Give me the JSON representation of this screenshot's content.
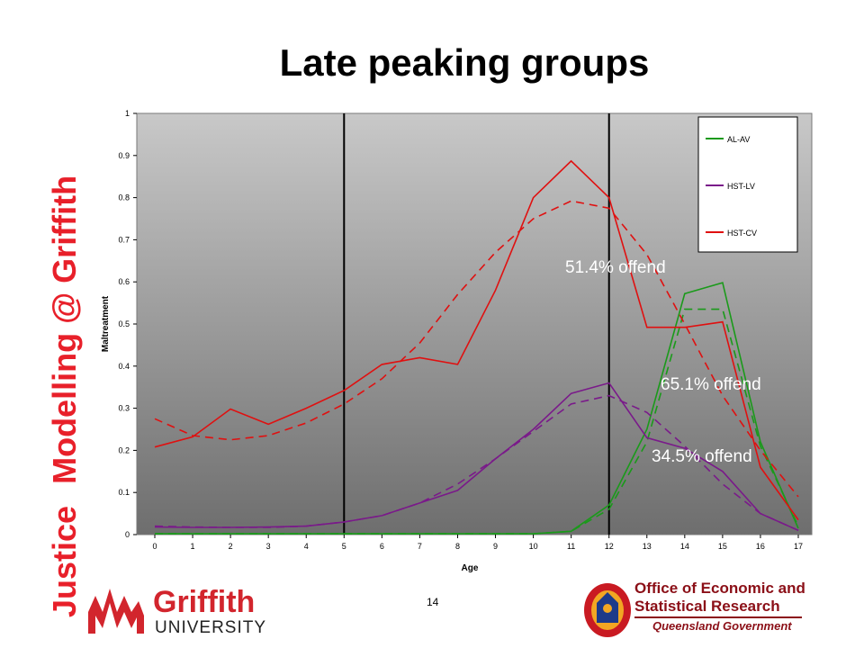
{
  "slide": {
    "title": "Late peaking groups",
    "page_number": "14",
    "side_brand": {
      "part1": "Justice",
      "part2": "Modelling @ Griffith"
    },
    "logos": {
      "griffith": {
        "line1": "Griffith",
        "line2": "UNIVERSITY"
      },
      "oesr": {
        "line1": "Office of Economic and",
        "line2": "Statistical Research",
        "line3": "Queensland Government"
      }
    },
    "annotations": [
      "51.4% offend",
      "65.1% offend",
      "34.5% offend"
    ],
    "colors": {
      "brand_red": "#e8202a",
      "oesr_red": "#8b0f17"
    }
  },
  "chart_data": {
    "type": "line",
    "xlabel": "Age",
    "ylabel": "Maltreatment",
    "x": [
      0,
      1,
      2,
      3,
      4,
      5,
      6,
      7,
      8,
      9,
      10,
      11,
      12,
      13,
      14,
      15,
      16,
      17
    ],
    "ylim": [
      0,
      1
    ],
    "yticks": [
      "0",
      "0.1",
      "0.2",
      "0.3",
      "0.4",
      "0.5",
      "0.6",
      "0.7",
      "0.8",
      "0.9",
      "1"
    ],
    "vertical_lines_at": [
      5,
      12
    ],
    "legend_position": "top-right",
    "series": [
      {
        "name": "AL-AV",
        "color": "#1a9a1a",
        "style": "solid",
        "values": [
          0.002,
          0.002,
          0.002,
          0.002,
          0.002,
          0.002,
          0.002,
          0.002,
          0.002,
          0.002,
          0.002,
          0.008,
          0.07,
          0.25,
          0.572,
          0.598,
          0.22,
          0.015
        ]
      },
      {
        "name": "",
        "color": "#1a9a1a",
        "style": "dashed",
        "values": [
          0.002,
          0.002,
          0.002,
          0.002,
          0.002,
          0.002,
          0.002,
          0.002,
          0.002,
          0.002,
          0.002,
          0.008,
          0.06,
          0.22,
          0.535,
          0.535,
          0.21,
          0.02
        ]
      },
      {
        "name": "HST-LV",
        "color": "#7a1a8a",
        "style": "solid",
        "values": [
          0.018,
          0.017,
          0.017,
          0.018,
          0.02,
          0.03,
          0.045,
          0.075,
          0.105,
          0.18,
          0.25,
          0.335,
          0.36,
          0.23,
          0.205,
          0.15,
          0.05,
          0.01
        ]
      },
      {
        "name": "",
        "color": "#7a1a8a",
        "style": "dashed",
        "values": [
          0.02,
          0.018,
          0.017,
          0.017,
          0.02,
          0.03,
          0.045,
          0.075,
          0.12,
          0.18,
          0.245,
          0.31,
          0.33,
          0.29,
          0.21,
          0.12,
          0.05,
          0.01
        ]
      },
      {
        "name": "HST-CV",
        "color": "#e01010",
        "style": "solid",
        "values": [
          0.208,
          0.232,
          0.298,
          0.262,
          0.3,
          0.342,
          0.404,
          0.42,
          0.404,
          0.58,
          0.8,
          0.887,
          0.8,
          0.492,
          0.492,
          0.505,
          0.16,
          0.035
        ]
      },
      {
        "name": "",
        "color": "#e01010",
        "style": "dashed",
        "values": [
          0.275,
          0.235,
          0.225,
          0.235,
          0.265,
          0.31,
          0.37,
          0.455,
          0.57,
          0.67,
          0.75,
          0.792,
          0.775,
          0.665,
          0.5,
          0.33,
          0.2,
          0.09
        ]
      }
    ]
  }
}
